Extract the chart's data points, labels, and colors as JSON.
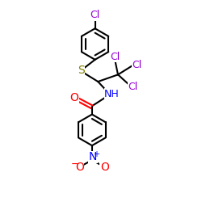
{
  "bg_color": "#ffffff",
  "atom_colors": {
    "C": "#000000",
    "H": "#000000",
    "N": "#0000ff",
    "O": "#ff0000",
    "S": "#808000",
    "Cl": "#9400d3"
  },
  "bond_color": "#000000",
  "bond_width": 1.5,
  "font_size": 9
}
